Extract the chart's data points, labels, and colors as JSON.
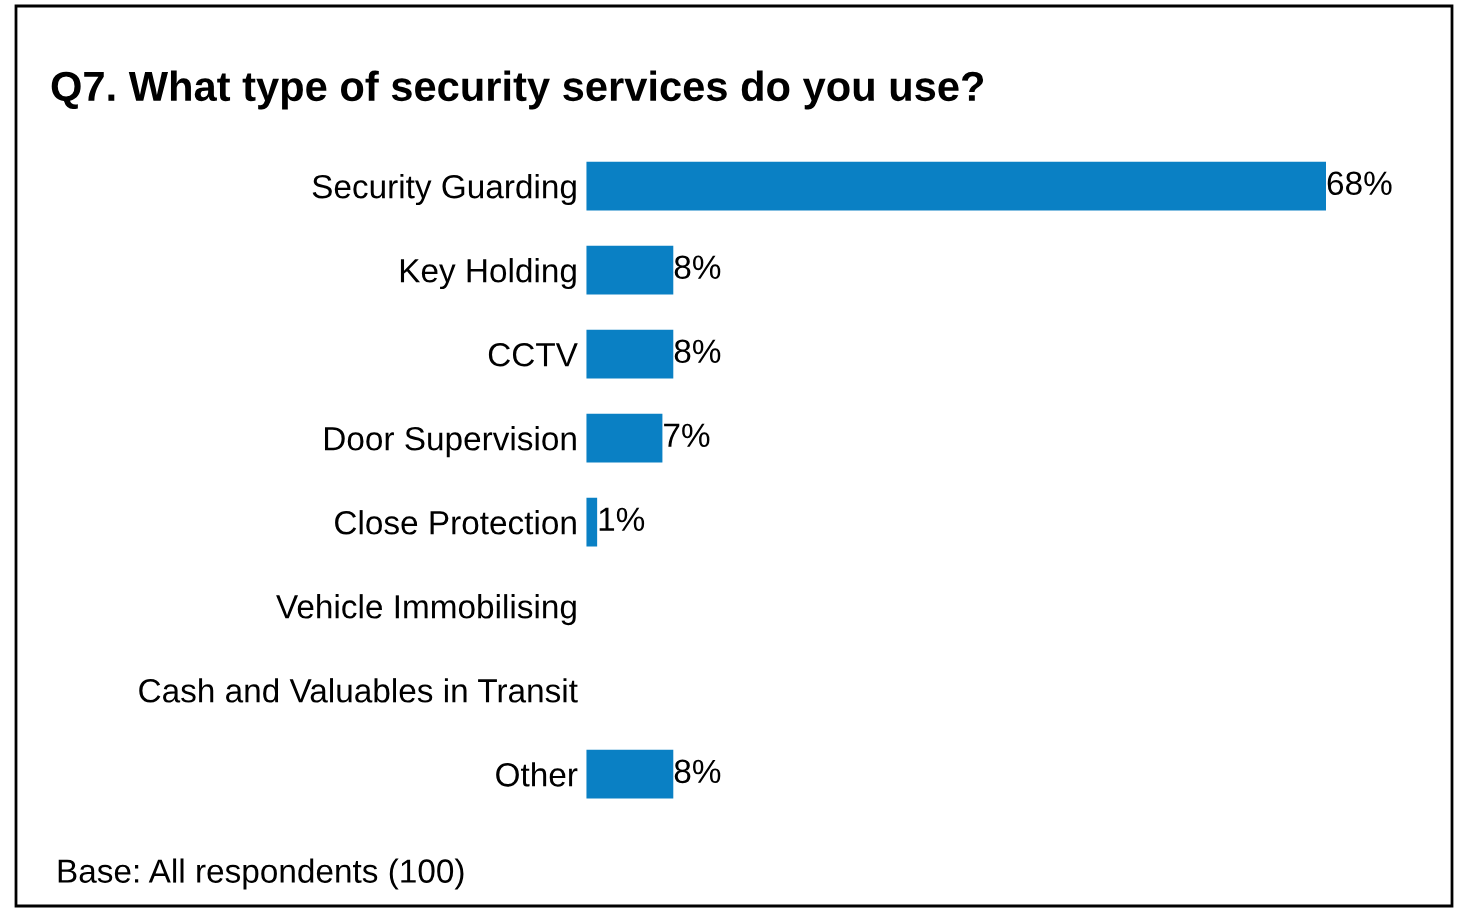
{
  "chart_data": {
    "type": "bar",
    "orientation": "horizontal",
    "title": "Q7. What type of security services do you use?",
    "categories": [
      "Security Guarding",
      "Key Holding",
      "CCTV",
      "Door Supervision",
      "Close Protection",
      "Vehicle Immobilising",
      "Cash and Valuables in Transit",
      "Other"
    ],
    "values": [
      68,
      8,
      8,
      7,
      1,
      null,
      null,
      8
    ],
    "value_labels": [
      "68%",
      "8%",
      "8%",
      "7%",
      "1%",
      null,
      null,
      "8%"
    ],
    "color": "#0a80c4",
    "tick_labels": "y",
    "grid": false,
    "legend": false,
    "annotations": [
      "Base: All respondents (100)"
    ]
  }
}
